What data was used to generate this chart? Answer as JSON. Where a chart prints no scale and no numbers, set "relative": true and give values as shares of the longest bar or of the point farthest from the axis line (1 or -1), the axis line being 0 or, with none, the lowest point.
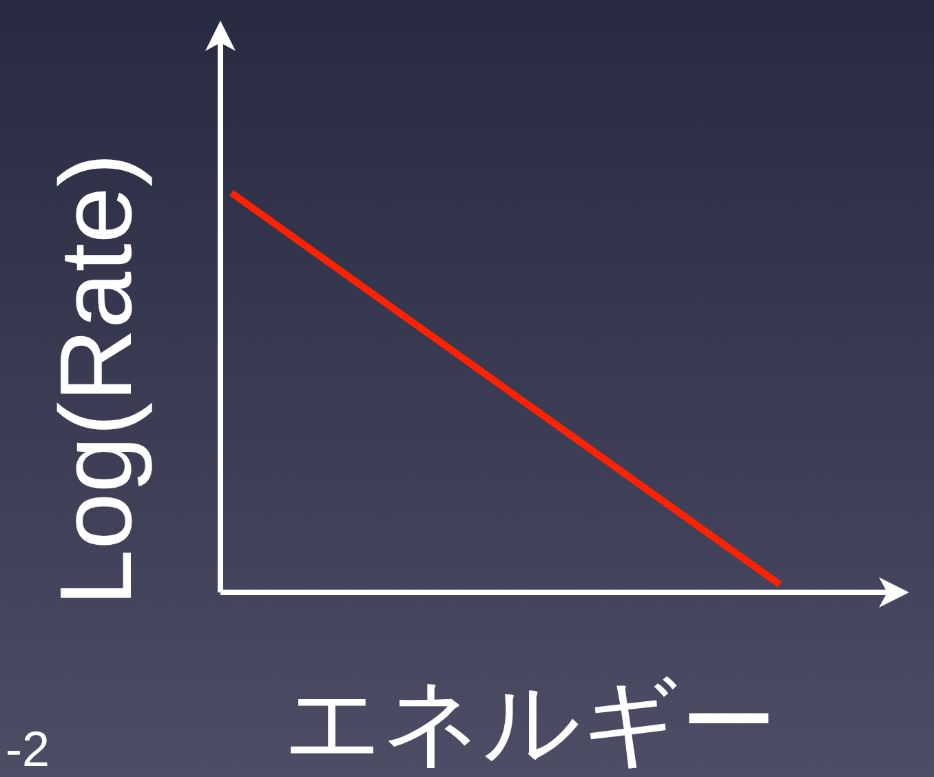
{
  "chart_data": {
    "type": "line",
    "relative": true,
    "xlabel": "エネルギー",
    "ylabel": "Log(Rate)",
    "categories": [
      null,
      null
    ],
    "series": [
      {
        "color": "#ff2200",
        "values": [
          1,
          0.02
        ]
      }
    ],
    "annotations": [
      "-2"
    ]
  }
}
